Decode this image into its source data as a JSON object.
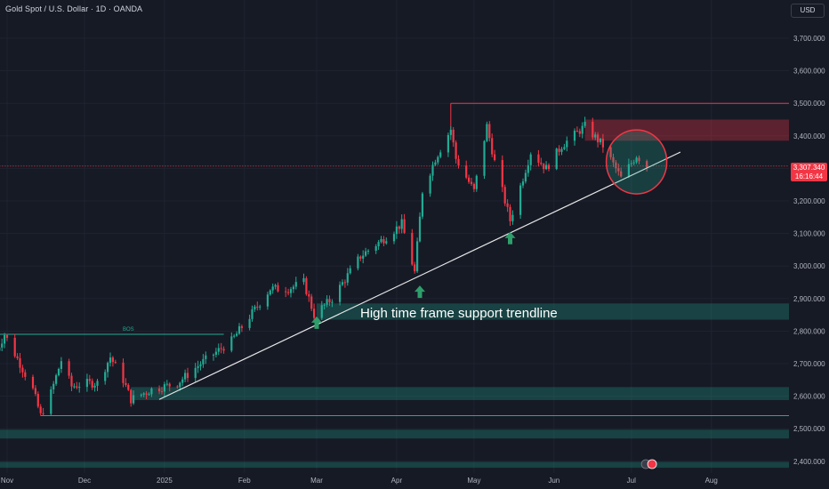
{
  "header": {
    "title": "Gold Spot / U.S. Dollar · 1D · OANDA",
    "currency_button": "USD"
  },
  "price_tag": {
    "price": "3,307.340",
    "countdown": "16:16:44"
  },
  "annotations": {
    "trendline_label": "High time frame support trendline",
    "bos_label": "BOS"
  },
  "colors": {
    "background": "#161a25",
    "bull": "#22ab94",
    "bear": "#f23645",
    "zone_green": "#1e4a34",
    "zone_red": "#5c2230",
    "text": "#b2b5be"
  },
  "chart_data": {
    "type": "candlestick",
    "title": "Gold Spot / U.S. Dollar · 1D · OANDA",
    "ylim": [
      2380,
      3790
    ],
    "y_ticks": [
      2400,
      2500,
      2600,
      2700,
      2800,
      2900,
      3000,
      3100,
      3200,
      3300,
      3400,
      3500,
      3600,
      3700
    ],
    "y_tick_labels": [
      "2,400.000",
      "2,500.000",
      "2,600.000",
      "2,700.000",
      "2,800.000",
      "2,900.000",
      "3,000.000",
      "3,100.000",
      "3,200.000",
      "3,300.000",
      "3,400.000",
      "3,500.000",
      "3,600.000",
      "3,700.000"
    ],
    "x_labels": [
      "Nov",
      "Dec",
      "2025",
      "Feb",
      "Mar",
      "Apr",
      "May",
      "Jun",
      "Jul",
      "Aug"
    ],
    "x_label_dates": [
      "2024-11-01",
      "2024-12-01",
      "2025-01-01",
      "2025-02-01",
      "2025-03-01",
      "2025-04-01",
      "2025-05-01",
      "2025-06-01",
      "2025-07-01",
      "2025-08-01"
    ],
    "last_price": 3307.34,
    "grid": true,
    "candle_path": [
      [
        "2024-10-28",
        2740
      ],
      [
        "2024-10-31",
        2790
      ],
      [
        "2024-11-06",
        2700
      ],
      [
        "2024-11-11",
        2620
      ],
      [
        "2024-11-14",
        2540
      ],
      [
        "2024-11-18",
        2610
      ],
      [
        "2024-11-22",
        2710
      ],
      [
        "2024-11-26",
        2630
      ],
      [
        "2024-12-02",
        2640
      ],
      [
        "2024-12-06",
        2640
      ],
      [
        "2024-12-11",
        2720
      ],
      [
        "2024-12-16",
        2650
      ],
      [
        "2024-12-19",
        2590
      ],
      [
        "2024-12-27",
        2620
      ],
      [
        "2025-01-06",
        2640
      ],
      [
        "2025-01-15",
        2700
      ],
      [
        "2025-01-27",
        2770
      ],
      [
        "2025-02-11",
        2930
      ],
      [
        "2025-02-18",
        2930
      ],
      [
        "2025-02-24",
        2950
      ],
      [
        "2025-02-28",
        2850
      ],
      [
        "2025-03-07",
        2900
      ],
      [
        "2025-03-18",
        3030
      ],
      [
        "2025-03-28",
        3090
      ],
      [
        "2025-04-03",
        3130
      ],
      [
        "2025-04-08",
        2980
      ],
      [
        "2025-04-11",
        3230
      ],
      [
        "2025-04-16",
        3330
      ],
      [
        "2025-04-22",
        3420
      ],
      [
        "2025-04-24",
        3330
      ],
      [
        "2025-05-01",
        3230
      ],
      [
        "2025-05-06",
        3430
      ],
      [
        "2025-05-09",
        3320
      ],
      [
        "2025-05-15",
        3140
      ],
      [
        "2025-05-23",
        3350
      ],
      [
        "2025-05-29",
        3300
      ],
      [
        "2025-06-04",
        3370
      ],
      [
        "2025-06-13",
        3430
      ],
      [
        "2025-06-20",
        3370
      ],
      [
        "2025-06-27",
        3270
      ],
      [
        "2025-07-03",
        3340
      ],
      [
        "2025-07-07",
        3307.34
      ]
    ],
    "horizontal_levels": [
      {
        "price": 3500,
        "from": "2025-04-22",
        "color": "#f23645"
      },
      {
        "price": 3307.34,
        "from": "2024-10-28",
        "color": "#f23645",
        "dashed": true
      },
      {
        "price": 2790,
        "from": "2024-10-28",
        "to": "2025-01-24",
        "color": "#22ab94"
      },
      {
        "price": 2540,
        "from": "2024-11-14",
        "color": "#22ab94"
      }
    ],
    "zones": [
      {
        "from": "2025-06-13",
        "top": 3450,
        "bottom": 3385,
        "color": "red"
      },
      {
        "from": "2025-03-01",
        "top": 2885,
        "bottom": 2835,
        "color": "green"
      },
      {
        "from": "2024-12-19",
        "top": 2628,
        "bottom": 2588,
        "color": "green"
      },
      {
        "from": "2024-10-28",
        "top": 2497,
        "bottom": 2470,
        "color": "green"
      },
      {
        "from": "2024-10-28",
        "top": 2398,
        "bottom": 2380,
        "color": "green"
      }
    ],
    "trendline": {
      "from": [
        "2024-12-30",
        2590
      ],
      "to": [
        "2025-07-20",
        3350
      ]
    },
    "arrows": [
      [
        "2025-03-01",
        2845
      ],
      [
        "2025-04-10",
        2940
      ],
      [
        "2025-05-15",
        3105
      ]
    ],
    "circle": {
      "date": "2025-07-03",
      "price": 3320
    }
  }
}
